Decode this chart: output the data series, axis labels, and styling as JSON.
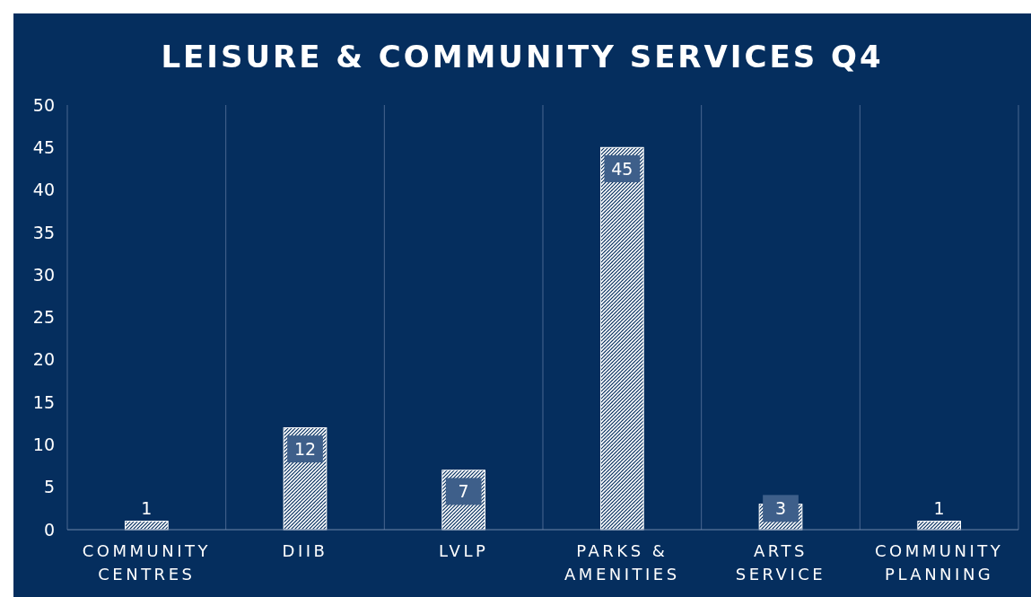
{
  "chart_data": {
    "type": "bar",
    "title": "LEISURE & COMMUNITY SERVICES Q4",
    "categories": [
      "COMMUNITY CENTRES",
      "DIIB",
      "LVLP",
      "PARKS & AMENITIES",
      "ARTS SERVICE",
      "COMMUNITY PLANNING"
    ],
    "values": [
      1,
      12,
      7,
      45,
      3,
      1
    ],
    "color": "#ffffff",
    "ylim": [
      0,
      50
    ],
    "yticks": [
      0,
      5,
      10,
      15,
      20,
      25,
      30,
      35,
      40,
      45,
      50
    ],
    "grid": "x",
    "data_labels": true
  }
}
